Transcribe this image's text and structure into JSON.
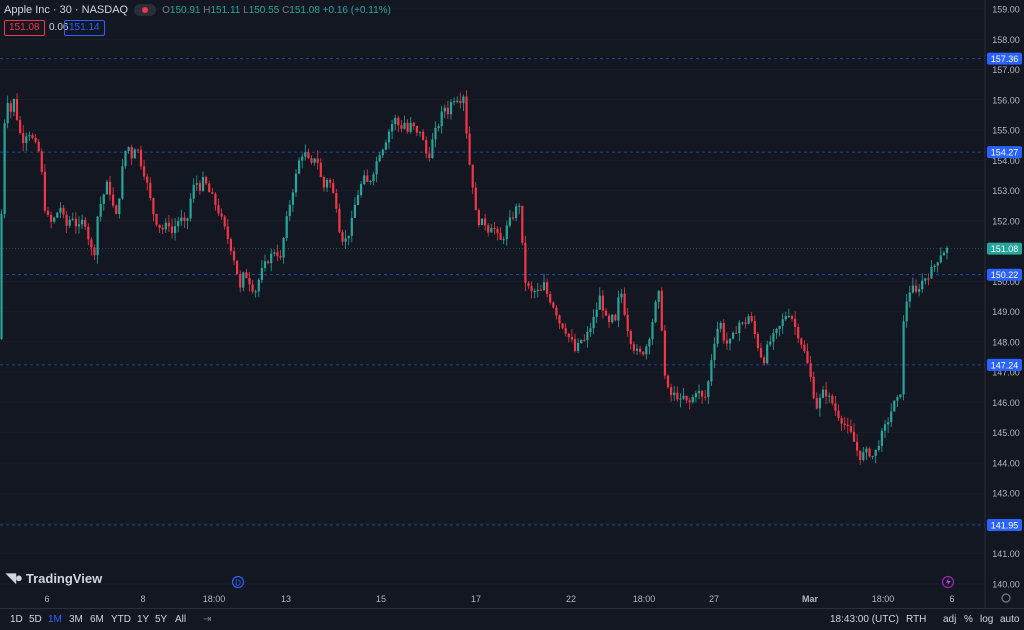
{
  "legend": {
    "symbol": "Apple Inc · 30 · NASDAQ",
    "open_label": "O",
    "open": "150.91",
    "high_label": "H",
    "high": "151.11",
    "low_label": "L",
    "low": "150.55",
    "close_label": "C",
    "close": "151.08",
    "change": "+0.16 (+0.11%)"
  },
  "quotes": {
    "bid": "151.08",
    "spread": "0.06",
    "ask": "151.14"
  },
  "branding": {
    "logo_text": "TradingView"
  },
  "bottom_bar": {
    "ranges": [
      "1D",
      "5D",
      "1M",
      "3M",
      "6M",
      "YTD",
      "1Y",
      "5Y",
      "All"
    ],
    "active_range": "1M",
    "time": "18:43:00 (UTC)",
    "session": "RTH",
    "adj": "adj",
    "percent": "%",
    "log": "log",
    "auto": "auto"
  },
  "colors": {
    "up": "#26a69a",
    "down": "#f23645",
    "background": "#131722",
    "grid": "#1e222d",
    "text": "#d1d4dc"
  },
  "chart_data": {
    "type": "candlestick",
    "ylim": [
      139.7,
      159.3
    ],
    "y_ticks": [
      140.0,
      141.0,
      142.0,
      143.0,
      144.0,
      145.0,
      146.0,
      147.0,
      148.0,
      149.0,
      150.0,
      151.0,
      152.0,
      153.0,
      154.0,
      155.0,
      156.0,
      157.0,
      158.0,
      159.0
    ],
    "x_tick_labels": [
      "6",
      "8",
      "18:00",
      "13",
      "15",
      "17",
      "22",
      "18:00",
      "27",
      "Mar",
      "18:00",
      "6"
    ],
    "price_lines": [
      {
        "value": 157.36,
        "label": "157.36",
        "color": "#2962ff"
      },
      {
        "value": 154.27,
        "label": "154.27",
        "color": "#2962ff"
      },
      {
        "value": 150.22,
        "label": "150.22",
        "color": "#2962ff"
      },
      {
        "value": 147.24,
        "label": "147.24",
        "color": "#2962ff"
      },
      {
        "value": 141.95,
        "label": "141.95",
        "color": "#2962ff"
      }
    ],
    "last_price": {
      "value": 151.08,
      "label": "151.08",
      "color": "#26a69a"
    },
    "close_path": [
      [
        0,
        148.1
      ],
      [
        2,
        153.6
      ],
      [
        6,
        156.2
      ],
      [
        11,
        155.6
      ],
      [
        14,
        156.0
      ],
      [
        18,
        155.2
      ],
      [
        22,
        154.6
      ],
      [
        28,
        155.0
      ],
      [
        34,
        154.6
      ],
      [
        40,
        154.2
      ],
      [
        45,
        152.4
      ],
      [
        50,
        151.9
      ],
      [
        55,
        152.1
      ],
      [
        60,
        152.5
      ],
      [
        66,
        151.8
      ],
      [
        72,
        152.2
      ],
      [
        78,
        151.7
      ],
      [
        84,
        152.1
      ],
      [
        90,
        151.2
      ],
      [
        94,
        150.8
      ],
      [
        98,
        152.3
      ],
      [
        102,
        152.7
      ],
      [
        108,
        153.3
      ],
      [
        112,
        152.6
      ],
      [
        116,
        152.1
      ],
      [
        120,
        153.0
      ],
      [
        124,
        154.2
      ],
      [
        128,
        154.5
      ],
      [
        132,
        154.1
      ],
      [
        136,
        154.6
      ],
      [
        140,
        154.0
      ],
      [
        144,
        153.6
      ],
      [
        148,
        153.1
      ],
      [
        152,
        152.4
      ],
      [
        156,
        152.0
      ],
      [
        160,
        151.8
      ],
      [
        164,
        151.7
      ],
      [
        168,
        152.0
      ],
      [
        172,
        151.6
      ],
      [
        176,
        151.9
      ],
      [
        180,
        152.1
      ],
      [
        186,
        151.8
      ],
      [
        192,
        153.0
      ],
      [
        196,
        153.3
      ],
      [
        200,
        153.1
      ],
      [
        204,
        153.4
      ],
      [
        208,
        153.0
      ],
      [
        212,
        152.8
      ],
      [
        216,
        152.5
      ],
      [
        220,
        152.2
      ],
      [
        224,
        151.8
      ],
      [
        228,
        151.4
      ],
      [
        232,
        151.0
      ],
      [
        236,
        150.5
      ],
      [
        240,
        149.7
      ],
      [
        244,
        150.3
      ],
      [
        248,
        150.1
      ],
      [
        252,
        149.8
      ],
      [
        256,
        149.7
      ],
      [
        260,
        150.2
      ],
      [
        264,
        150.5
      ],
      [
        268,
        150.7
      ],
      [
        272,
        150.9
      ],
      [
        276,
        151.1
      ],
      [
        280,
        150.6
      ],
      [
        284,
        151.5
      ],
      [
        288,
        152.3
      ],
      [
        292,
        152.9
      ],
      [
        296,
        153.5
      ],
      [
        300,
        154.1
      ],
      [
        304,
        154.3
      ],
      [
        308,
        154.0
      ],
      [
        312,
        153.8
      ],
      [
        316,
        154.3
      ],
      [
        320,
        153.5
      ],
      [
        324,
        153.1
      ],
      [
        328,
        153.5
      ],
      [
        332,
        153.0
      ],
      [
        336,
        152.6
      ],
      [
        340,
        151.6
      ],
      [
        344,
        151.3
      ],
      [
        348,
        151.5
      ],
      [
        352,
        152.0
      ],
      [
        356,
        152.7
      ],
      [
        360,
        153.1
      ],
      [
        364,
        153.4
      ],
      [
        368,
        153.2
      ],
      [
        372,
        153.5
      ],
      [
        376,
        153.9
      ],
      [
        380,
        154.3
      ],
      [
        384,
        154.5
      ],
      [
        388,
        154.9
      ],
      [
        392,
        155.2
      ],
      [
        396,
        155.4
      ],
      [
        400,
        155.0
      ],
      [
        404,
        155.3
      ],
      [
        408,
        154.9
      ],
      [
        412,
        155.3
      ],
      [
        416,
        154.8
      ],
      [
        420,
        155.0
      ],
      [
        424,
        154.5
      ],
      [
        428,
        154.0
      ],
      [
        432,
        154.6
      ],
      [
        436,
        155.0
      ],
      [
        440,
        155.3
      ],
      [
        444,
        155.8
      ],
      [
        448,
        155.6
      ],
      [
        452,
        156.0
      ],
      [
        456,
        156.1
      ],
      [
        460,
        156.0
      ],
      [
        464,
        156.2
      ],
      [
        468,
        154.2
      ],
      [
        472,
        153.4
      ],
      [
        476,
        152.2
      ],
      [
        480,
        151.9
      ],
      [
        484,
        152.0
      ],
      [
        488,
        151.7
      ],
      [
        492,
        151.9
      ],
      [
        496,
        151.6
      ],
      [
        500,
        151.3
      ],
      [
        504,
        151.5
      ],
      [
        508,
        151.9
      ],
      [
        512,
        152.1
      ],
      [
        516,
        152.4
      ],
      [
        520,
        152.6
      ],
      [
        524,
        150.1
      ],
      [
        528,
        149.8
      ],
      [
        532,
        149.6
      ],
      [
        536,
        149.7
      ],
      [
        540,
        149.6
      ],
      [
        544,
        149.9
      ],
      [
        548,
        149.5
      ],
      [
        552,
        149.3
      ],
      [
        556,
        149.0
      ],
      [
        560,
        148.6
      ],
      [
        564,
        148.5
      ],
      [
        568,
        148.2
      ],
      [
        572,
        148.0
      ],
      [
        576,
        147.6
      ],
      [
        580,
        148.1
      ],
      [
        584,
        148.0
      ],
      [
        588,
        148.3
      ],
      [
        592,
        148.6
      ],
      [
        596,
        149.0
      ],
      [
        600,
        149.5
      ],
      [
        604,
        149.0
      ],
      [
        608,
        148.5
      ],
      [
        612,
        148.8
      ],
      [
        616,
        148.6
      ],
      [
        620,
        149.9
      ],
      [
        624,
        149.1
      ],
      [
        628,
        148.4
      ],
      [
        632,
        147.9
      ],
      [
        636,
        147.7
      ],
      [
        640,
        147.6
      ],
      [
        644,
        147.7
      ],
      [
        648,
        148.0
      ],
      [
        652,
        148.6
      ],
      [
        656,
        149.3
      ],
      [
        660,
        149.7
      ],
      [
        664,
        147.0
      ],
      [
        668,
        146.4
      ],
      [
        672,
        146.2
      ],
      [
        676,
        146.3
      ],
      [
        680,
        146.0
      ],
      [
        684,
        146.2
      ],
      [
        688,
        145.9
      ],
      [
        692,
        146.1
      ],
      [
        696,
        146.4
      ],
      [
        700,
        146.3
      ],
      [
        704,
        146.0
      ],
      [
        708,
        146.6
      ],
      [
        712,
        147.6
      ],
      [
        716,
        148.3
      ],
      [
        720,
        148.7
      ],
      [
        724,
        148.1
      ],
      [
        728,
        147.9
      ],
      [
        732,
        148.1
      ],
      [
        736,
        148.4
      ],
      [
        740,
        148.7
      ],
      [
        744,
        148.5
      ],
      [
        748,
        148.9
      ],
      [
        752,
        148.6
      ],
      [
        756,
        148.1
      ],
      [
        760,
        147.6
      ],
      [
        764,
        147.4
      ],
      [
        768,
        147.9
      ],
      [
        772,
        148.1
      ],
      [
        776,
        148.3
      ],
      [
        780,
        148.5
      ],
      [
        784,
        148.8
      ],
      [
        788,
        149.0
      ],
      [
        792,
        148.8
      ],
      [
        796,
        148.4
      ],
      [
        800,
        148.1
      ],
      [
        804,
        147.7
      ],
      [
        808,
        147.2
      ],
      [
        812,
        146.6
      ],
      [
        816,
        145.8
      ],
      [
        820,
        146.1
      ],
      [
        824,
        146.4
      ],
      [
        828,
        146.2
      ],
      [
        832,
        146.0
      ],
      [
        836,
        145.7
      ],
      [
        840,
        145.5
      ],
      [
        844,
        145.3
      ],
      [
        848,
        145.1
      ],
      [
        852,
        144.9
      ],
      [
        856,
        144.5
      ],
      [
        860,
        144.2
      ],
      [
        864,
        144.3
      ],
      [
        868,
        144.4
      ],
      [
        872,
        144.2
      ],
      [
        876,
        144.4
      ],
      [
        880,
        144.8
      ],
      [
        884,
        145.1
      ],
      [
        888,
        145.4
      ],
      [
        892,
        145.8
      ],
      [
        896,
        146.1
      ],
      [
        900,
        146.0
      ],
      [
        904,
        148.9
      ],
      [
        908,
        149.6
      ],
      [
        912,
        149.8
      ],
      [
        916,
        149.6
      ],
      [
        920,
        149.9
      ],
      [
        924,
        150.1
      ],
      [
        928,
        150.2
      ],
      [
        932,
        150.4
      ],
      [
        936,
        150.6
      ],
      [
        940,
        150.9
      ],
      [
        944,
        151.0
      ],
      [
        948,
        151.08
      ]
    ]
  }
}
